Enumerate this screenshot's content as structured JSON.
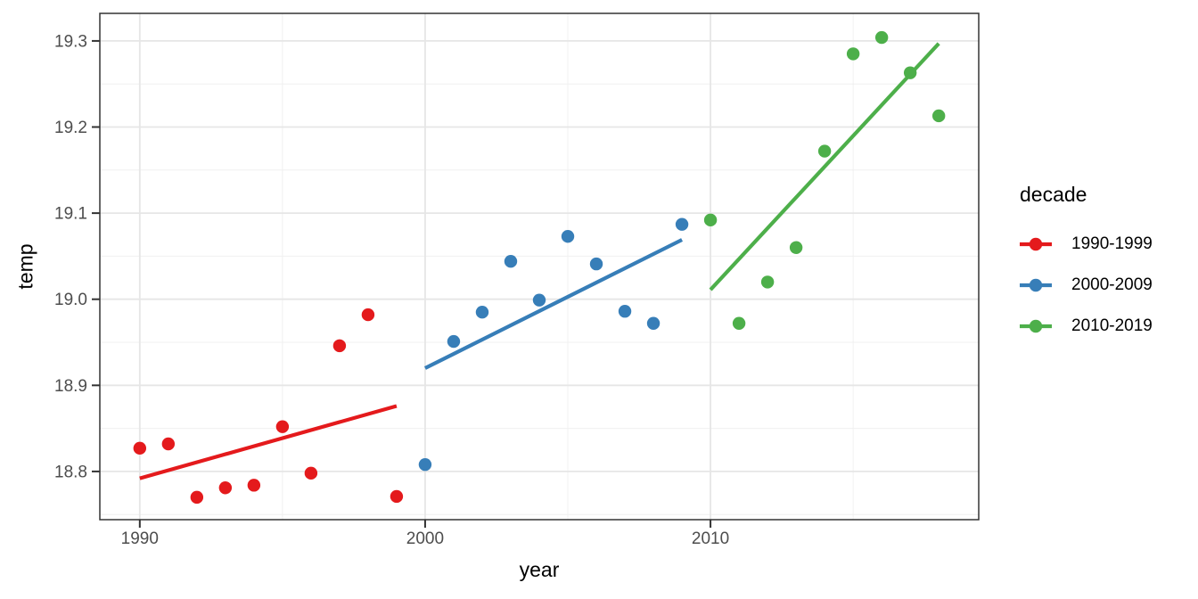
{
  "chart_data": {
    "type": "scatter",
    "title": "",
    "xlabel": "year",
    "ylabel": "temp",
    "legend_title": "decade",
    "legend_position": "right",
    "grid": true,
    "panel_background": "#ffffff",
    "panel_border_color": "#333333",
    "major_grid_color": "#e6e6e6",
    "minor_grid_color": "#f0f0f0",
    "tick_color": "#333333",
    "tick_label_color": "#4d4d4d",
    "x_domain": [
      1988.6,
      2019.4
    ],
    "y_domain": [
      18.744,
      19.332
    ],
    "x_ticks": [
      1990,
      2000,
      2010
    ],
    "x_tick_labels": [
      "1990",
      "2000",
      "2010"
    ],
    "x_minor_ticks": [
      1995,
      2005,
      2015
    ],
    "y_ticks": [
      18.8,
      18.9,
      19.0,
      19.1,
      19.2,
      19.3
    ],
    "y_tick_labels": [
      "18.8",
      "18.9",
      "19.0",
      "19.1",
      "19.2",
      "19.3"
    ],
    "y_minor_ticks": [
      18.75,
      18.85,
      18.95,
      19.05,
      19.15,
      19.25
    ],
    "series": [
      {
        "name": "1990-1999",
        "color": "#E41A1C",
        "x": [
          1990,
          1991,
          1992,
          1993,
          1994,
          1995,
          1996,
          1997,
          1998,
          1999
        ],
        "y": [
          18.827,
          18.832,
          18.77,
          18.781,
          18.784,
          18.852,
          18.798,
          18.946,
          18.982,
          18.771
        ],
        "trend": {
          "x1": 1990,
          "y1": 18.792,
          "x2": 1999,
          "y2": 18.876
        }
      },
      {
        "name": "2000-2009",
        "color": "#377EB8",
        "x": [
          2000,
          2001,
          2002,
          2003,
          2004,
          2005,
          2006,
          2007,
          2008,
          2009
        ],
        "y": [
          18.808,
          18.951,
          18.985,
          19.044,
          18.999,
          19.073,
          19.041,
          18.986,
          18.972,
          19.087
        ],
        "trend": {
          "x1": 2000,
          "y1": 18.92,
          "x2": 2009,
          "y2": 19.069
        }
      },
      {
        "name": "2010-2019",
        "color": "#4DAF4A",
        "x": [
          2010,
          2011,
          2012,
          2013,
          2014,
          2015,
          2016,
          2017,
          2018
        ],
        "y": [
          19.092,
          18.972,
          19.02,
          19.06,
          19.172,
          19.285,
          19.304,
          19.263,
          19.213
        ],
        "trend": {
          "x1": 2010,
          "y1": 19.011,
          "x2": 2018,
          "y2": 19.297
        }
      }
    ]
  }
}
